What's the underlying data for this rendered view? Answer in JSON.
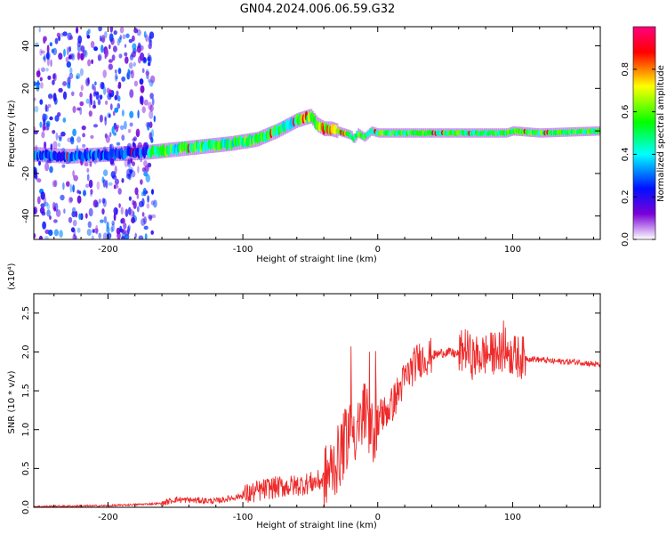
{
  "title": "GN04.2024.006.06.59.G32",
  "chart_data": [
    {
      "type": "heatmap",
      "panel": "spectrogram",
      "xlabel": "Height of straight line (km)",
      "ylabel": "Frequency (Hz)",
      "xlim": [
        -255,
        165
      ],
      "ylim": [
        -51,
        49
      ],
      "xticks": [
        -200,
        -100,
        0,
        100
      ],
      "yticks": [
        -40,
        -20,
        0,
        20,
        40
      ],
      "colorbar": {
        "label": "Normalized spectral amplitude",
        "range": [
          0.0,
          1.0
        ],
        "ticks": [
          0.0,
          0.2,
          0.4,
          0.6,
          0.8
        ],
        "colormap": [
          "#ffffff",
          "#7a00d8",
          "#0010ff",
          "#00ffff",
          "#00ff00",
          "#ffff00",
          "#ff0000",
          "#ff0080"
        ]
      },
      "ridge": {
        "x": [
          -255,
          -230,
          -200,
          -170,
          -140,
          -110,
          -90,
          -75,
          -60,
          -50,
          -45,
          -40,
          -35,
          -30,
          -25,
          -20,
          -18,
          -15,
          -10,
          -5,
          0,
          20,
          50,
          80,
          95,
          100,
          120,
          165
        ],
        "y": [
          -11,
          -12,
          -11,
          -10,
          -8,
          -6,
          -4,
          0,
          5,
          7,
          3,
          1,
          1,
          0,
          -1,
          -2,
          -4,
          -1,
          -3,
          0,
          -1,
          -1,
          -1,
          -1,
          -1,
          0,
          -1,
          0
        ],
        "peak_amplitude": 1.0
      },
      "noise_region": {
        "x_range": [
          -255,
          -165
        ],
        "amplitude": 0.3
      }
    },
    {
      "type": "line",
      "panel": "snr",
      "xlabel": "Height of straight line (km)",
      "ylabel": "SNR (10 * v/v)",
      "scale_label": "(x10⁴)",
      "xlim": [
        -255,
        165
      ],
      "ylim": [
        0.0,
        2.75
      ],
      "xticks": [
        -200,
        -100,
        0,
        100
      ],
      "yticks": [
        0.0,
        0.5,
        1.0,
        1.5,
        2.0,
        2.5
      ],
      "color": "#ee2a2a",
      "series": [
        {
          "x": [
            -255,
            -200,
            -160,
            -150,
            -120,
            -100,
            -80,
            -60,
            -40,
            -30,
            -25,
            -20,
            -15,
            -10,
            -5,
            0,
            10,
            20,
            30,
            40,
            50,
            60,
            65,
            70,
            80,
            90,
            95,
            100,
            110,
            130,
            150,
            165
          ],
          "y": [
            0.01,
            0.02,
            0.05,
            0.1,
            0.08,
            0.15,
            0.25,
            0.28,
            0.35,
            0.6,
            0.8,
            1.1,
            0.95,
            1.2,
            0.9,
            1.15,
            1.3,
            1.65,
            1.9,
            1.95,
            2.0,
            1.97,
            2.05,
            1.92,
            1.97,
            2.0,
            2.05,
            1.95,
            1.92,
            1.88,
            1.87,
            1.83
          ]
        }
      ]
    }
  ]
}
